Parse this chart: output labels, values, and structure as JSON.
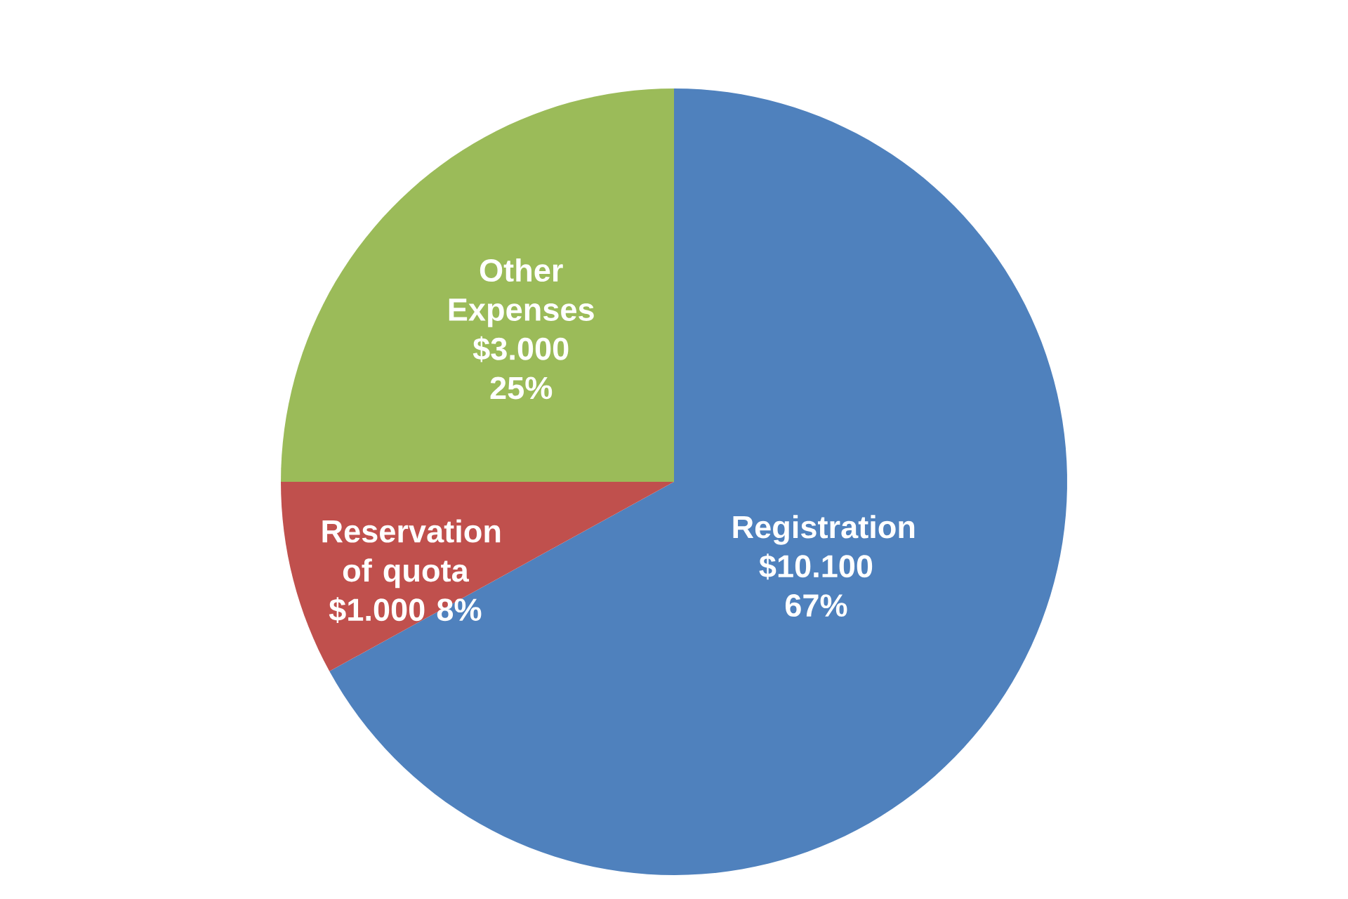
{
  "chart_data": {
    "type": "pie",
    "categories": [
      "Registration",
      "Reservation of quota",
      "Other Expenses"
    ],
    "values": [
      67,
      8,
      25
    ],
    "value_labels": [
      "$10.100 67%",
      "$1.000 8%",
      "$3.000 25%"
    ],
    "colors": [
      "#4f81bd",
      "#c0504d",
      "#9bbb59"
    ]
  }
}
